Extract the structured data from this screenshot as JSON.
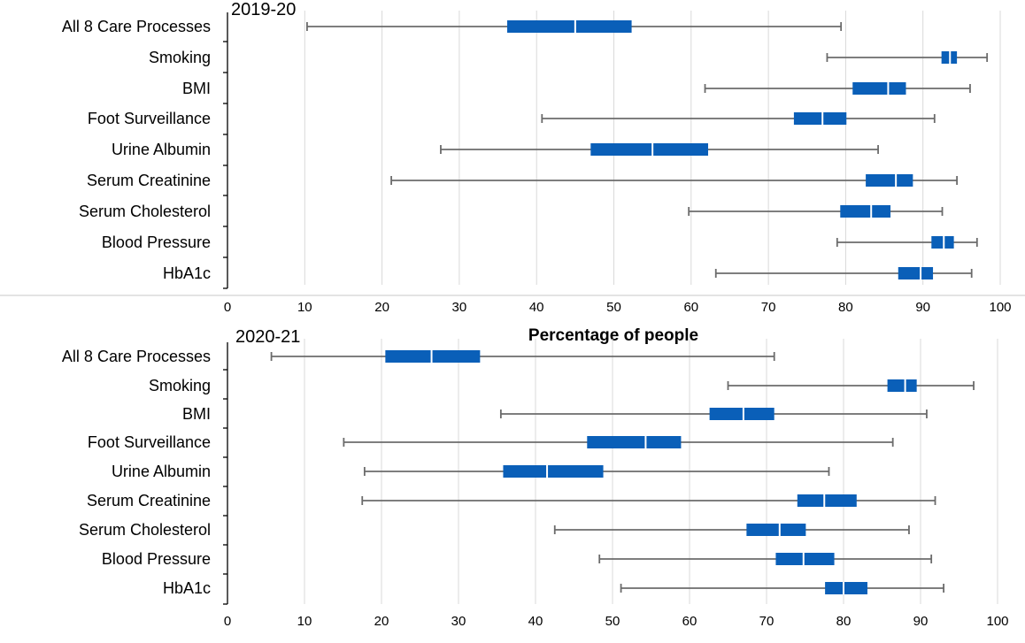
{
  "chart_data": [
    {
      "type": "boxplot",
      "title": "2019-20",
      "xlabel": "Percentage of people",
      "xlim": [
        0,
        100
      ],
      "xticks": [
        "0",
        "10",
        "20",
        "30",
        "40",
        "50",
        "60",
        "70",
        "80",
        "90",
        "100"
      ],
      "grid": true,
      "categories": [
        "All 8 Care Processes",
        "Smoking",
        "BMI",
        "Foot Surveillance",
        "Urine Albumin",
        "Serum Creatinine",
        "Serum Cholesterol",
        "Blood Pressure",
        "HbA1c"
      ],
      "boxes": [
        {
          "min": 10.3,
          "q1": 36.2,
          "median": 45.0,
          "q3": 52.3,
          "max": 79.4
        },
        {
          "min": 77.6,
          "q1": 92.4,
          "median": 93.5,
          "q3": 94.4,
          "max": 98.3
        },
        {
          "min": 61.8,
          "q1": 80.9,
          "median": 85.5,
          "q3": 87.8,
          "max": 96.1
        },
        {
          "min": 40.7,
          "q1": 73.3,
          "median": 77.0,
          "q3": 80.1,
          "max": 91.5
        },
        {
          "min": 27.6,
          "q1": 47.0,
          "median": 55.0,
          "q3": 62.2,
          "max": 84.2
        },
        {
          "min": 21.2,
          "q1": 82.6,
          "median": 86.5,
          "q3": 88.7,
          "max": 94.4
        },
        {
          "min": 59.7,
          "q1": 79.3,
          "median": 83.3,
          "q3": 85.8,
          "max": 92.5
        },
        {
          "min": 78.9,
          "q1": 91.1,
          "median": 92.7,
          "q3": 94.0,
          "max": 97.0
        },
        {
          "min": 63.2,
          "q1": 86.8,
          "median": 89.7,
          "q3": 91.3,
          "max": 96.3
        }
      ],
      "colors": {
        "box": "#0a5fb8",
        "whisker": "#6b6b6b",
        "grid": "#d9d9d9"
      }
    },
    {
      "type": "boxplot",
      "title": "2020-21",
      "xlim": [
        0,
        100
      ],
      "xticks": [
        "0",
        "10",
        "20",
        "30",
        "40",
        "50",
        "60",
        "70",
        "80",
        "90",
        "100"
      ],
      "grid": true,
      "categories": [
        "All 8 Care Processes",
        "Smoking",
        "BMI",
        "Foot Surveillance",
        "Urine Albumin",
        "Serum Creatinine",
        "Serum Cholesterol",
        "Blood Pressure",
        "HbA1c"
      ],
      "boxes": [
        {
          "min": 5.7,
          "q1": 20.5,
          "median": 26.5,
          "q3": 32.8,
          "max": 71.0
        },
        {
          "min": 65.0,
          "q1": 85.7,
          "median": 88.0,
          "q3": 89.5,
          "max": 96.9
        },
        {
          "min": 35.5,
          "q1": 62.6,
          "median": 67.0,
          "q3": 71.0,
          "max": 90.8
        },
        {
          "min": 15.1,
          "q1": 46.7,
          "median": 54.3,
          "q3": 58.9,
          "max": 86.4
        },
        {
          "min": 17.8,
          "q1": 35.8,
          "median": 41.5,
          "q3": 48.8,
          "max": 78.1
        },
        {
          "min": 17.5,
          "q1": 74.0,
          "median": 77.5,
          "q3": 81.7,
          "max": 91.9
        },
        {
          "min": 42.5,
          "q1": 67.4,
          "median": 71.7,
          "q3": 75.1,
          "max": 88.5
        },
        {
          "min": 48.3,
          "q1": 71.2,
          "median": 74.8,
          "q3": 78.8,
          "max": 91.4
        },
        {
          "min": 51.1,
          "q1": 77.6,
          "median": 80.0,
          "q3": 83.1,
          "max": 93.0
        }
      ],
      "colors": {
        "box": "#0a5fb8",
        "whisker": "#6b6b6b",
        "grid": "#d9d9d9"
      }
    }
  ]
}
